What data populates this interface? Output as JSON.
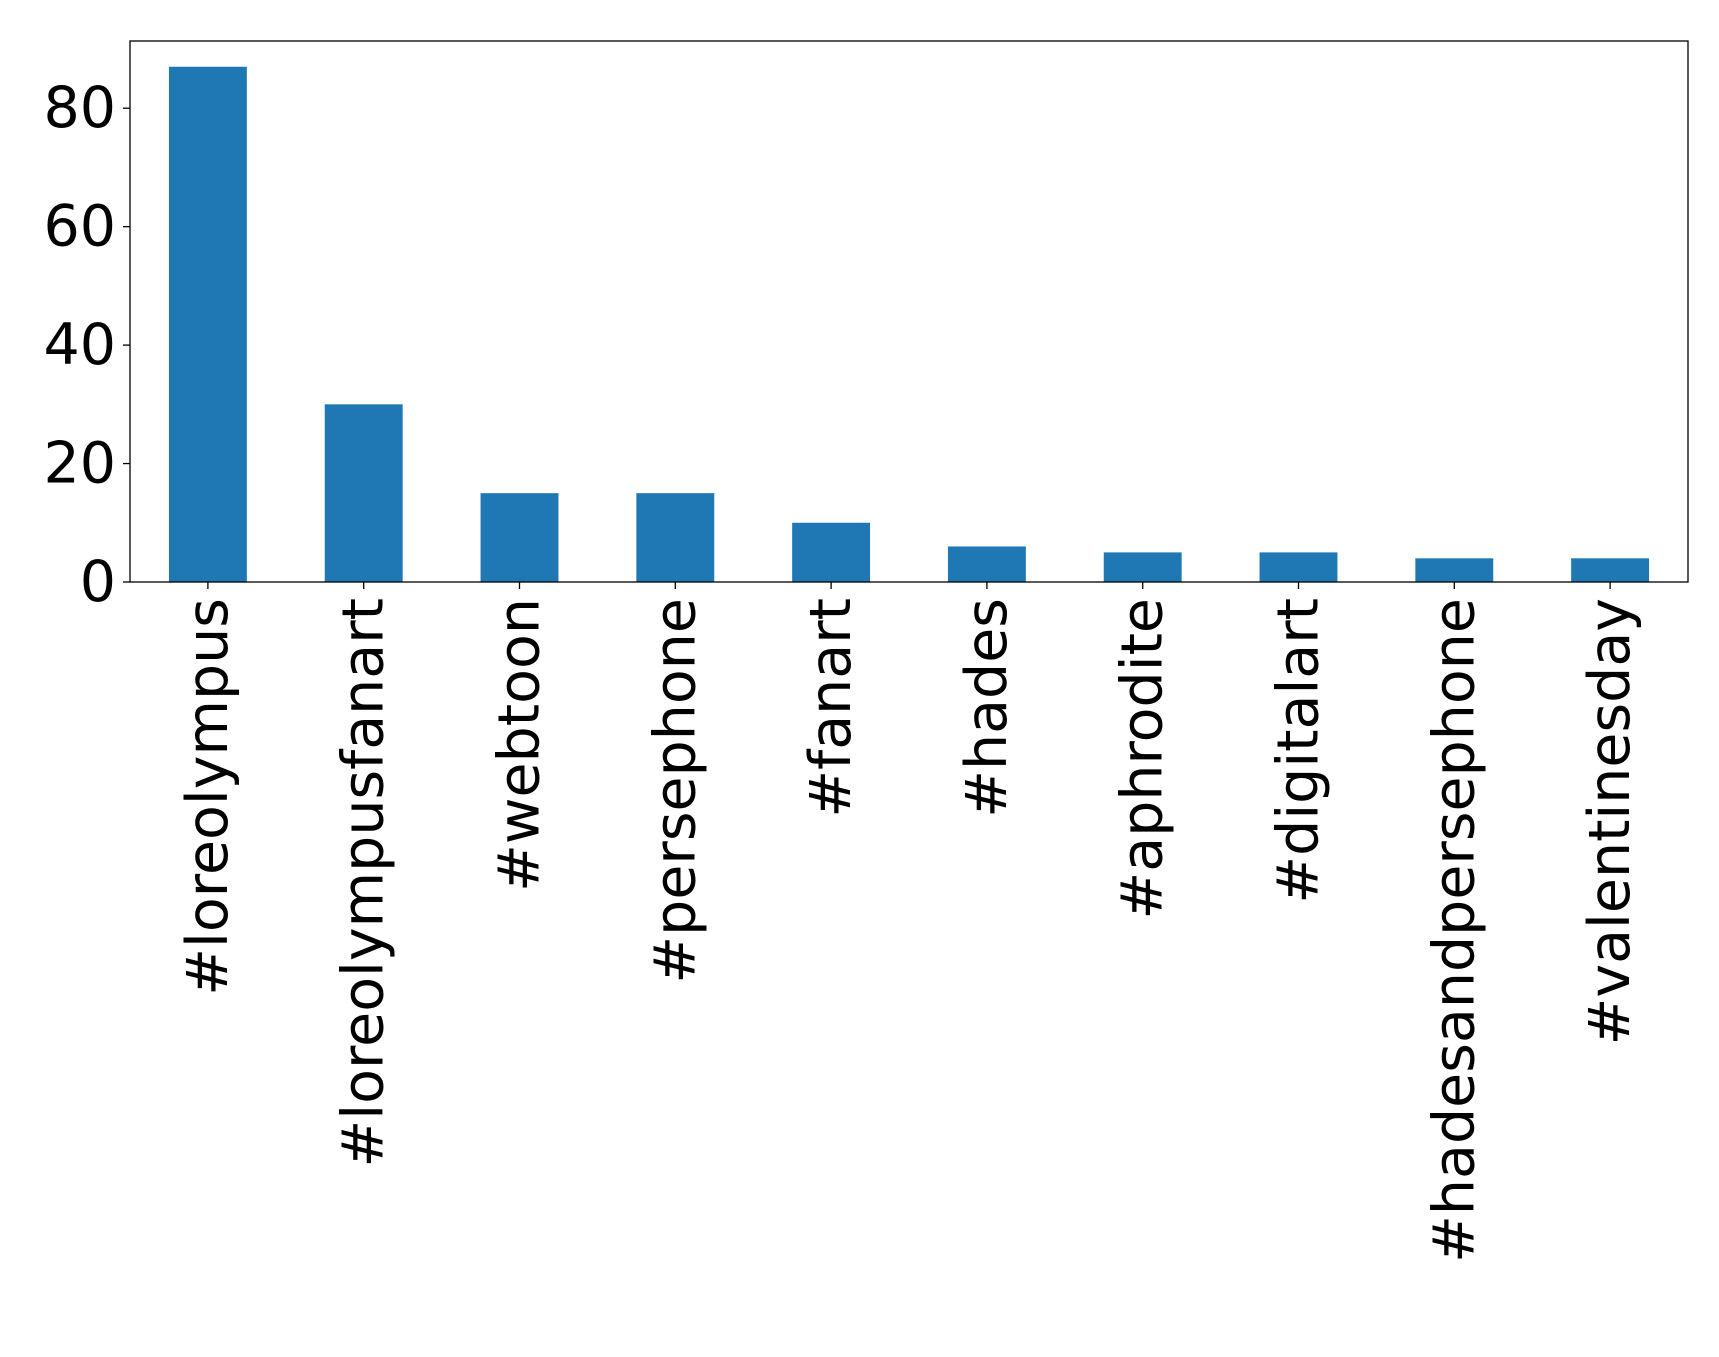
{
  "chart_data": {
    "type": "bar",
    "categories": [
      "#loreolympus",
      "#loreolympusfanart",
      "#webtoon",
      "#persephone",
      "#fanart",
      "#hades",
      "#aphrodite",
      "#digitalart",
      "#hadesandpersephone",
      "#valentinesday"
    ],
    "values": [
      87,
      30,
      15,
      15,
      10,
      6,
      5,
      5,
      4,
      4
    ],
    "ylim": [
      0,
      91.35
    ],
    "yticks": [
      0,
      20,
      40,
      60,
      80
    ],
    "ytick_labels": [
      "0",
      "20",
      "40",
      "60",
      "80"
    ],
    "bar_color": "#1f77b4",
    "grid": false,
    "legend": "none"
  }
}
